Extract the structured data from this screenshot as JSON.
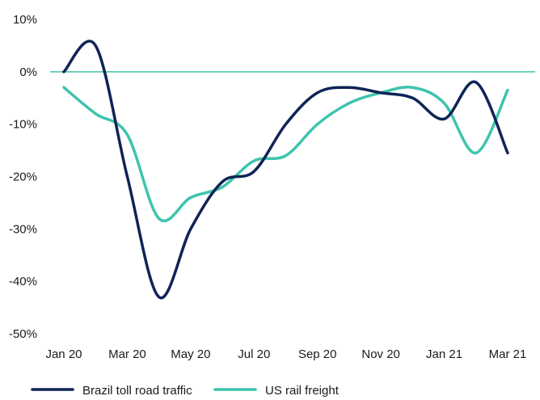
{
  "chart_data": {
    "type": "line",
    "title": "",
    "xlabel": "",
    "ylabel": "",
    "x": [
      "Jan 20",
      "Feb 20",
      "Mar 20",
      "Apr 20",
      "May 20",
      "Jun 20",
      "Jul 20",
      "Aug 20",
      "Sep 20",
      "Oct 20",
      "Nov 20",
      "Dec 20",
      "Jan 21",
      "Feb 21",
      "Mar 21"
    ],
    "x_tick_labels": [
      "Jan 20",
      "Mar 20",
      "May 20",
      "Jul 20",
      "Sep 20",
      "Nov 20",
      "Jan 21",
      "Mar 21"
    ],
    "y_tick_labels": [
      "10%",
      "0%",
      "-10%",
      "-20%",
      "-30%",
      "-40%",
      "-50%"
    ],
    "y_ticks": [
      10,
      0,
      -10,
      -20,
      -30,
      -40,
      -50
    ],
    "ylim": [
      -50,
      10
    ],
    "grid": false,
    "zero_line": true,
    "legend_position": "bottom-left",
    "series": [
      {
        "name": "Brazil toll road traffic",
        "color": "#0f2456",
        "values": [
          0,
          5,
          -20,
          -43,
          -30,
          -21,
          -19,
          -10,
          -4,
          -3,
          -4,
          -5,
          -9,
          -2,
          -15.5
        ]
      },
      {
        "name": "US rail freight",
        "color": "#3ec4ad",
        "values": [
          -3,
          -8,
          -12,
          -28,
          -24,
          -22,
          -17,
          -16,
          -10,
          -6,
          -4,
          -3,
          -6,
          -15.5,
          -3.5
        ]
      }
    ]
  }
}
